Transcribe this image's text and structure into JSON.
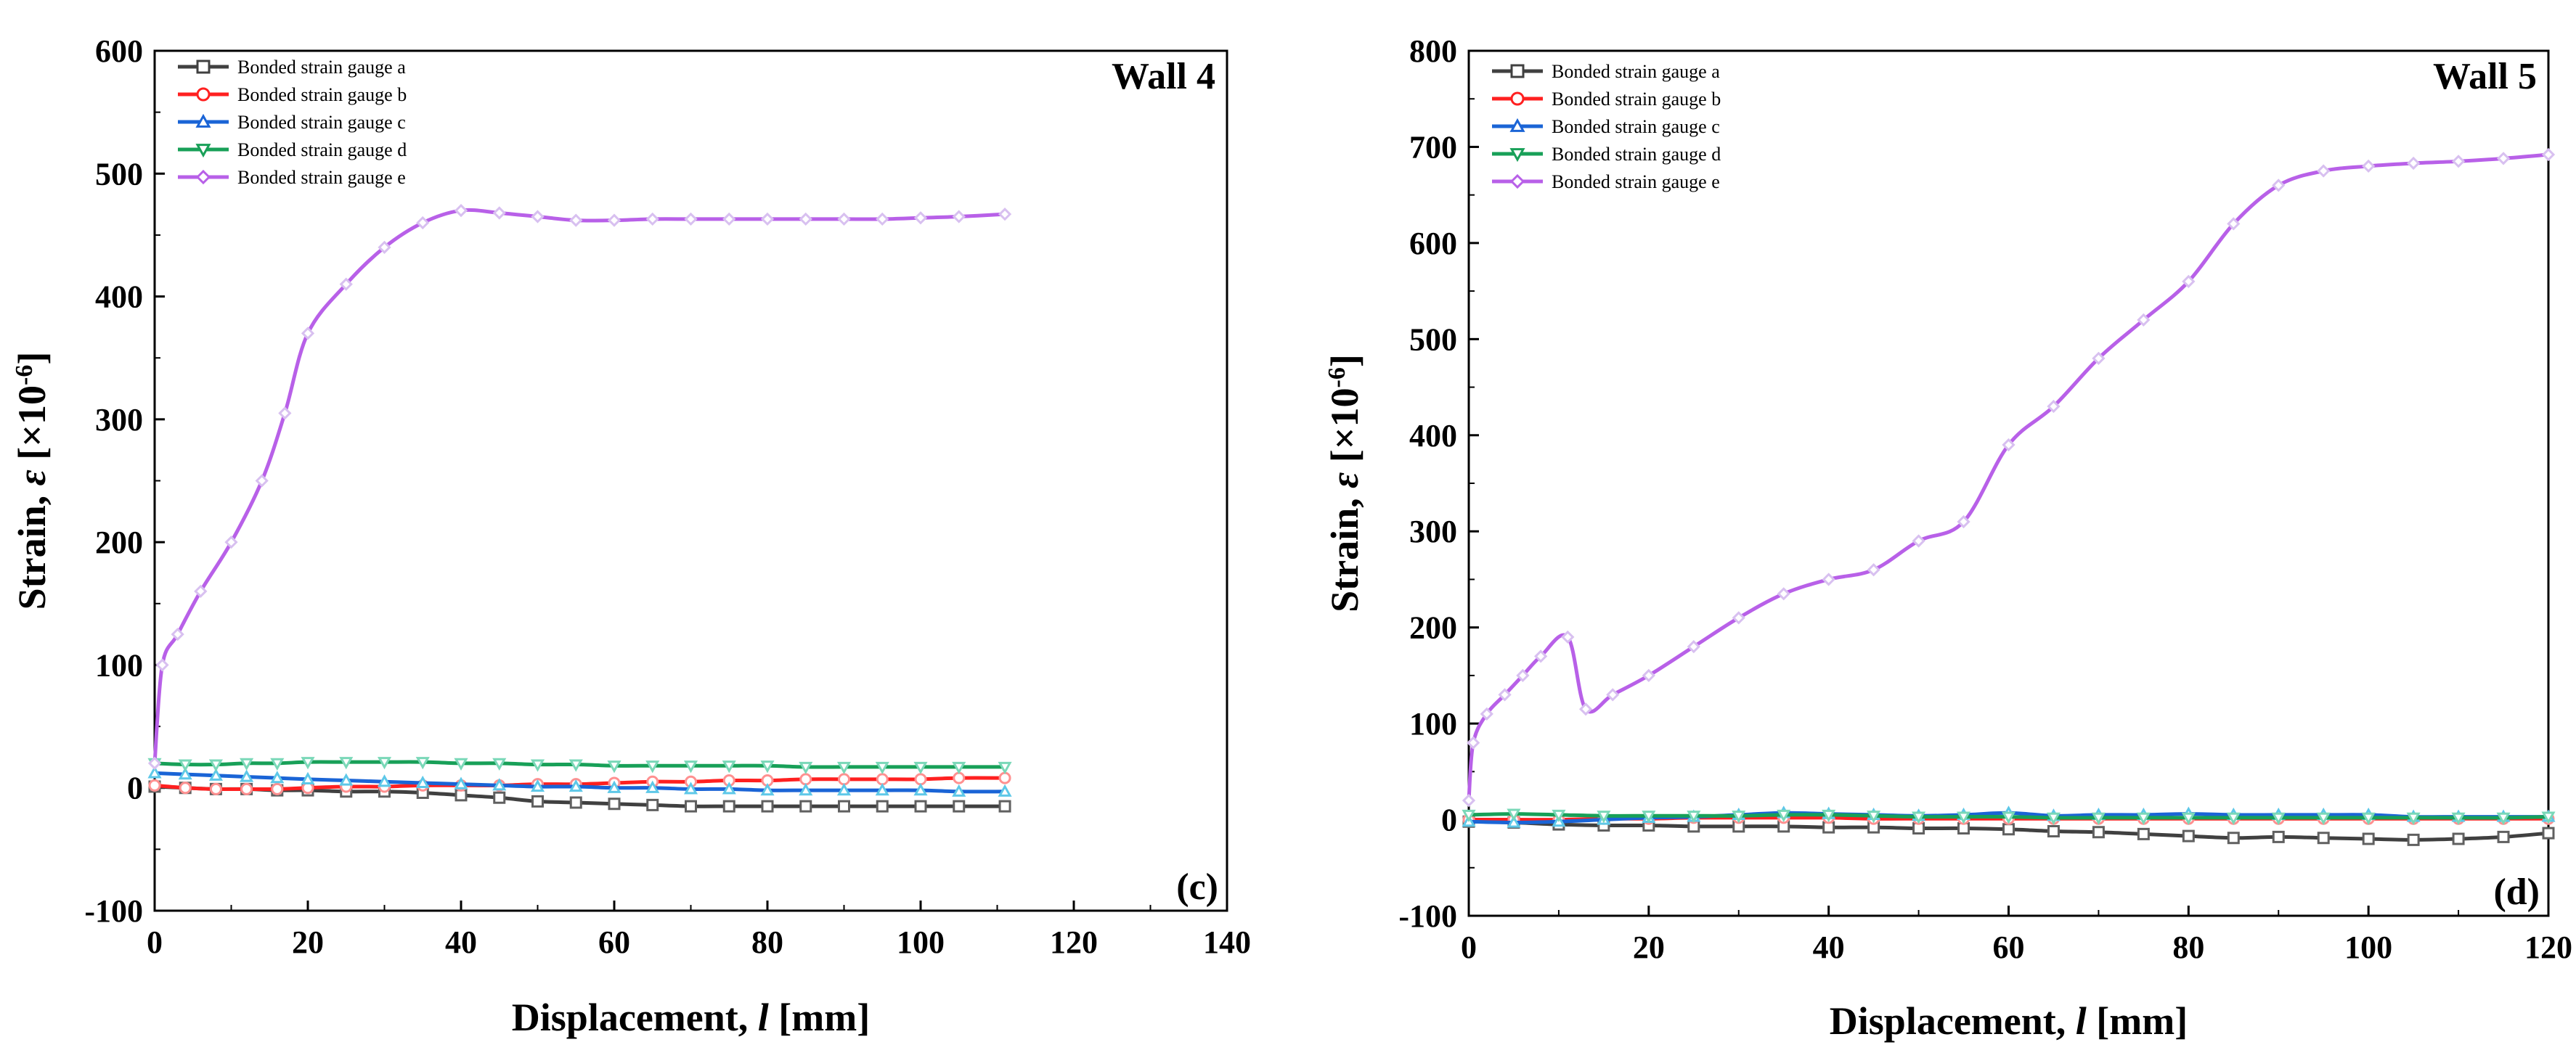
{
  "chart_data": [
    {
      "type": "line",
      "panel_title": "Wall 4",
      "panel_letter": "(c)",
      "xlabel_main": "Displacement, ",
      "xlabel_italic": "l",
      "xlabel_unit": " [mm]",
      "ylabel_main": "Strain, ",
      "ylabel_italic": "ε",
      "ylabel_unit": " [×10",
      "ylabel_exp": "-6",
      "ylabel_close": "]",
      "xlim": [
        0,
        140
      ],
      "ylim": [
        -100,
        600
      ],
      "xticks": [
        0,
        20,
        40,
        60,
        80,
        100,
        120,
        140
      ],
      "yticks": [
        -100,
        0,
        100,
        200,
        300,
        400,
        500,
        600
      ],
      "legend_position": "top-left",
      "series": [
        {
          "name": "Bonded strain gauge a",
          "color": "#404040",
          "marker": "square",
          "x": [
            0,
            4,
            8,
            12,
            16,
            20,
            25,
            30,
            35,
            40,
            45,
            50,
            55,
            60,
            65,
            70,
            75,
            80,
            85,
            90,
            95,
            100,
            105,
            111
          ],
          "y": [
            1,
            0,
            -1,
            -1,
            -2,
            -2,
            -3,
            -3,
            -4,
            -6,
            -8,
            -11,
            -12,
            -13,
            -14,
            -15,
            -15,
            -15,
            -15,
            -15,
            -15,
            -15,
            -15,
            -15
          ]
        },
        {
          "name": "Bonded strain gauge b",
          "color": "#ff2020",
          "marker": "circle",
          "x": [
            0,
            4,
            8,
            12,
            16,
            20,
            25,
            30,
            35,
            40,
            45,
            50,
            55,
            60,
            65,
            70,
            75,
            80,
            85,
            90,
            95,
            100,
            105,
            111
          ],
          "y": [
            2,
            0,
            -1,
            -1,
            -1,
            0,
            1,
            1,
            2,
            2,
            2,
            3,
            3,
            4,
            5,
            5,
            6,
            6,
            7,
            7,
            7,
            7,
            8,
            8
          ]
        },
        {
          "name": "Bonded strain gauge c",
          "color": "#1a64d6",
          "marker": "triangle",
          "x": [
            0,
            4,
            8,
            12,
            16,
            20,
            25,
            30,
            35,
            40,
            45,
            50,
            55,
            60,
            65,
            70,
            75,
            80,
            85,
            90,
            95,
            100,
            105,
            111
          ],
          "y": [
            12,
            11,
            10,
            9,
            8,
            7,
            6,
            5,
            4,
            3,
            2,
            1,
            1,
            0,
            0,
            -1,
            -1,
            -2,
            -2,
            -2,
            -2,
            -2,
            -3,
            -3
          ]
        },
        {
          "name": "Bonded strain gauge d",
          "color": "#18a058",
          "marker": "inverted-triangle",
          "x": [
            0,
            4,
            8,
            12,
            16,
            20,
            25,
            30,
            35,
            40,
            45,
            50,
            55,
            60,
            65,
            70,
            75,
            80,
            85,
            90,
            95,
            100,
            105,
            111
          ],
          "y": [
            20,
            19,
            19,
            20,
            20,
            21,
            21,
            21,
            21,
            20,
            20,
            19,
            19,
            18,
            18,
            18,
            18,
            18,
            17,
            17,
            17,
            17,
            17,
            17
          ]
        },
        {
          "name": "Bonded strain gauge e",
          "color": "#b860e8",
          "marker": "diamond",
          "x": [
            0,
            1,
            3,
            6,
            10,
            14,
            17,
            20,
            25,
            30,
            35,
            40,
            45,
            50,
            55,
            60,
            65,
            70,
            75,
            80,
            85,
            90,
            95,
            100,
            105,
            111
          ],
          "y": [
            20,
            100,
            125,
            160,
            200,
            250,
            305,
            370,
            410,
            440,
            460,
            470,
            468,
            465,
            462,
            462,
            463,
            463,
            463,
            463,
            463,
            463,
            463,
            464,
            465,
            467
          ]
        }
      ]
    },
    {
      "type": "line",
      "panel_title": "Wall 5",
      "panel_letter": "(d)",
      "xlabel_main": "Displacement, ",
      "xlabel_italic": "l",
      "xlabel_unit": " [mm]",
      "ylabel_main": "Strain, ",
      "ylabel_italic": "ε",
      "ylabel_unit": " [×10",
      "ylabel_exp": "-6",
      "ylabel_close": "]",
      "xlim": [
        0,
        120
      ],
      "ylim": [
        -100,
        800
      ],
      "xticks": [
        0,
        20,
        40,
        60,
        80,
        100,
        120
      ],
      "yticks": [
        -100,
        0,
        100,
        200,
        300,
        400,
        500,
        600,
        700,
        800
      ],
      "legend_position": "top-left",
      "series": [
        {
          "name": "Bonded strain gauge a",
          "color": "#404040",
          "marker": "square",
          "x": [
            0,
            5,
            10,
            15,
            20,
            25,
            30,
            35,
            40,
            45,
            50,
            55,
            60,
            65,
            70,
            75,
            80,
            85,
            90,
            95,
            100,
            105,
            110,
            115,
            120
          ],
          "y": [
            -2,
            -3,
            -5,
            -6,
            -6,
            -7,
            -7,
            -7,
            -8,
            -8,
            -9,
            -9,
            -10,
            -12,
            -13,
            -15,
            -17,
            -19,
            -18,
            -19,
            -20,
            -21,
            -20,
            -18,
            -14
          ]
        },
        {
          "name": "Bonded strain gauge b",
          "color": "#ff2020",
          "marker": "circle",
          "x": [
            0,
            5,
            10,
            15,
            20,
            25,
            30,
            35,
            40,
            45,
            50,
            55,
            60,
            65,
            70,
            75,
            80,
            85,
            90,
            95,
            100,
            105,
            110,
            115,
            120
          ],
          "y": [
            0,
            0,
            0,
            1,
            1,
            2,
            2,
            2,
            2,
            1,
            1,
            1,
            1,
            1,
            1,
            1,
            1,
            1,
            1,
            1,
            1,
            1,
            1,
            1,
            1
          ]
        },
        {
          "name": "Bonded strain gauge c",
          "color": "#1a64d6",
          "marker": "triangle",
          "x": [
            0,
            5,
            10,
            15,
            20,
            25,
            30,
            35,
            40,
            45,
            50,
            55,
            60,
            65,
            70,
            75,
            80,
            85,
            90,
            95,
            100,
            105,
            110,
            115,
            120
          ],
          "y": [
            -2,
            -3,
            -2,
            0,
            2,
            3,
            5,
            7,
            6,
            5,
            4,
            5,
            7,
            4,
            5,
            5,
            6,
            5,
            5,
            5,
            5,
            3,
            3,
            3,
            3
          ]
        },
        {
          "name": "Bonded strain gauge d",
          "color": "#18a058",
          "marker": "inverted-triangle",
          "x": [
            0,
            5,
            10,
            15,
            20,
            25,
            30,
            35,
            40,
            45,
            50,
            55,
            60,
            65,
            70,
            75,
            80,
            85,
            90,
            95,
            100,
            105,
            110,
            115,
            120
          ],
          "y": [
            5,
            6,
            5,
            4,
            4,
            4,
            4,
            5,
            5,
            4,
            3,
            3,
            3,
            2,
            2,
            2,
            2,
            2,
            2,
            2,
            2,
            2,
            2,
            2,
            3
          ]
        },
        {
          "name": "Bonded strain gauge e",
          "color": "#b860e8",
          "marker": "diamond",
          "x": [
            0,
            0.5,
            2,
            4,
            6,
            8,
            11,
            13,
            16,
            20,
            25,
            30,
            35,
            40,
            45,
            50,
            55,
            60,
            65,
            70,
            75,
            80,
            85,
            90,
            95,
            100,
            105,
            110,
            115,
            120
          ],
          "y": [
            20,
            80,
            110,
            130,
            150,
            170,
            190,
            115,
            130,
            150,
            180,
            210,
            235,
            250,
            260,
            290,
            310,
            390,
            430,
            480,
            520,
            560,
            620,
            660,
            675,
            680,
            683,
            685,
            688,
            692
          ]
        }
      ]
    }
  ]
}
